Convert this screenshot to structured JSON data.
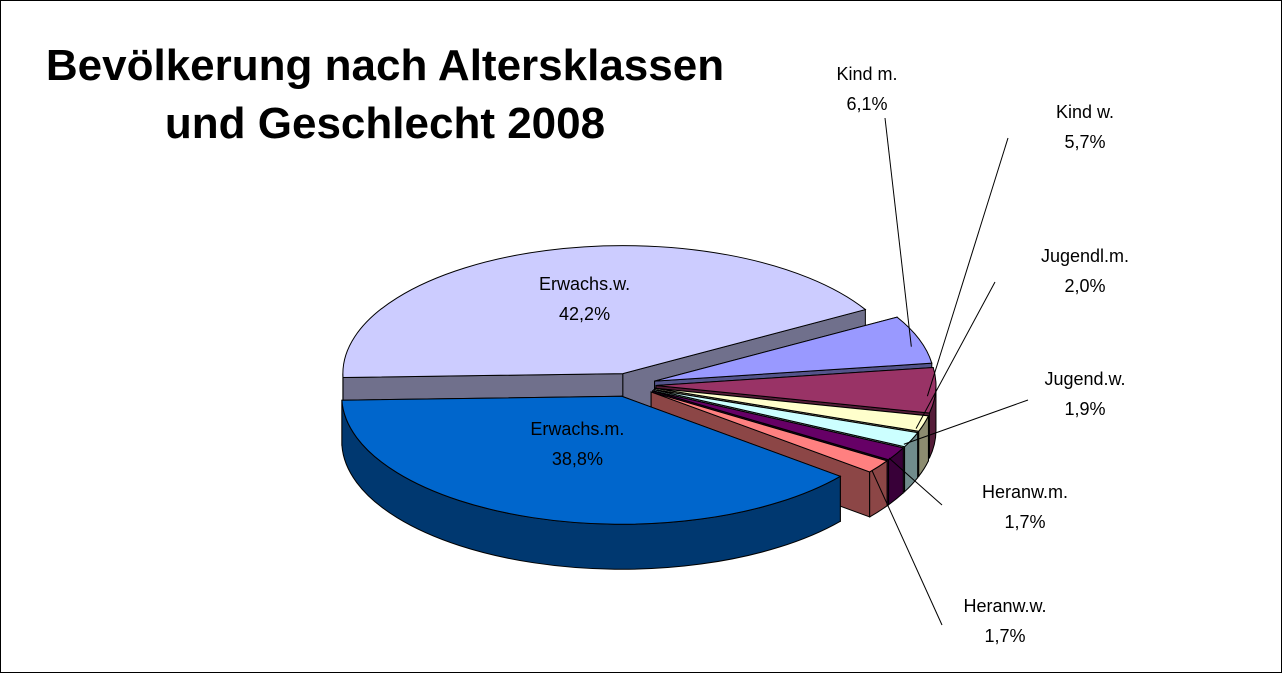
{
  "chart_data": {
    "type": "pie3d",
    "title": [
      "Bevölkerung nach Altersklassen",
      "und Geschlecht 2008"
    ],
    "categories": [
      "Kind m.",
      "Kind w.",
      "Jugendl.m.",
      "Jugend.w.",
      "Heranw.m.",
      "Heranw.w.",
      "Erwachs.m.",
      "Erwachs.w."
    ],
    "values": [
      6.1,
      5.7,
      2.0,
      1.9,
      1.7,
      1.7,
      38.8,
      42.2
    ],
    "value_labels": [
      "6,1%",
      "5,7%",
      "2,0%",
      "1,9%",
      "1,7%",
      "1,7%",
      "38,8%",
      "42,2%"
    ],
    "colors": [
      "#9999ff",
      "#993366",
      "#ffffcc",
      "#ccffff",
      "#660066",
      "#ff8080",
      "#0066cc",
      "#ccccff"
    ]
  }
}
